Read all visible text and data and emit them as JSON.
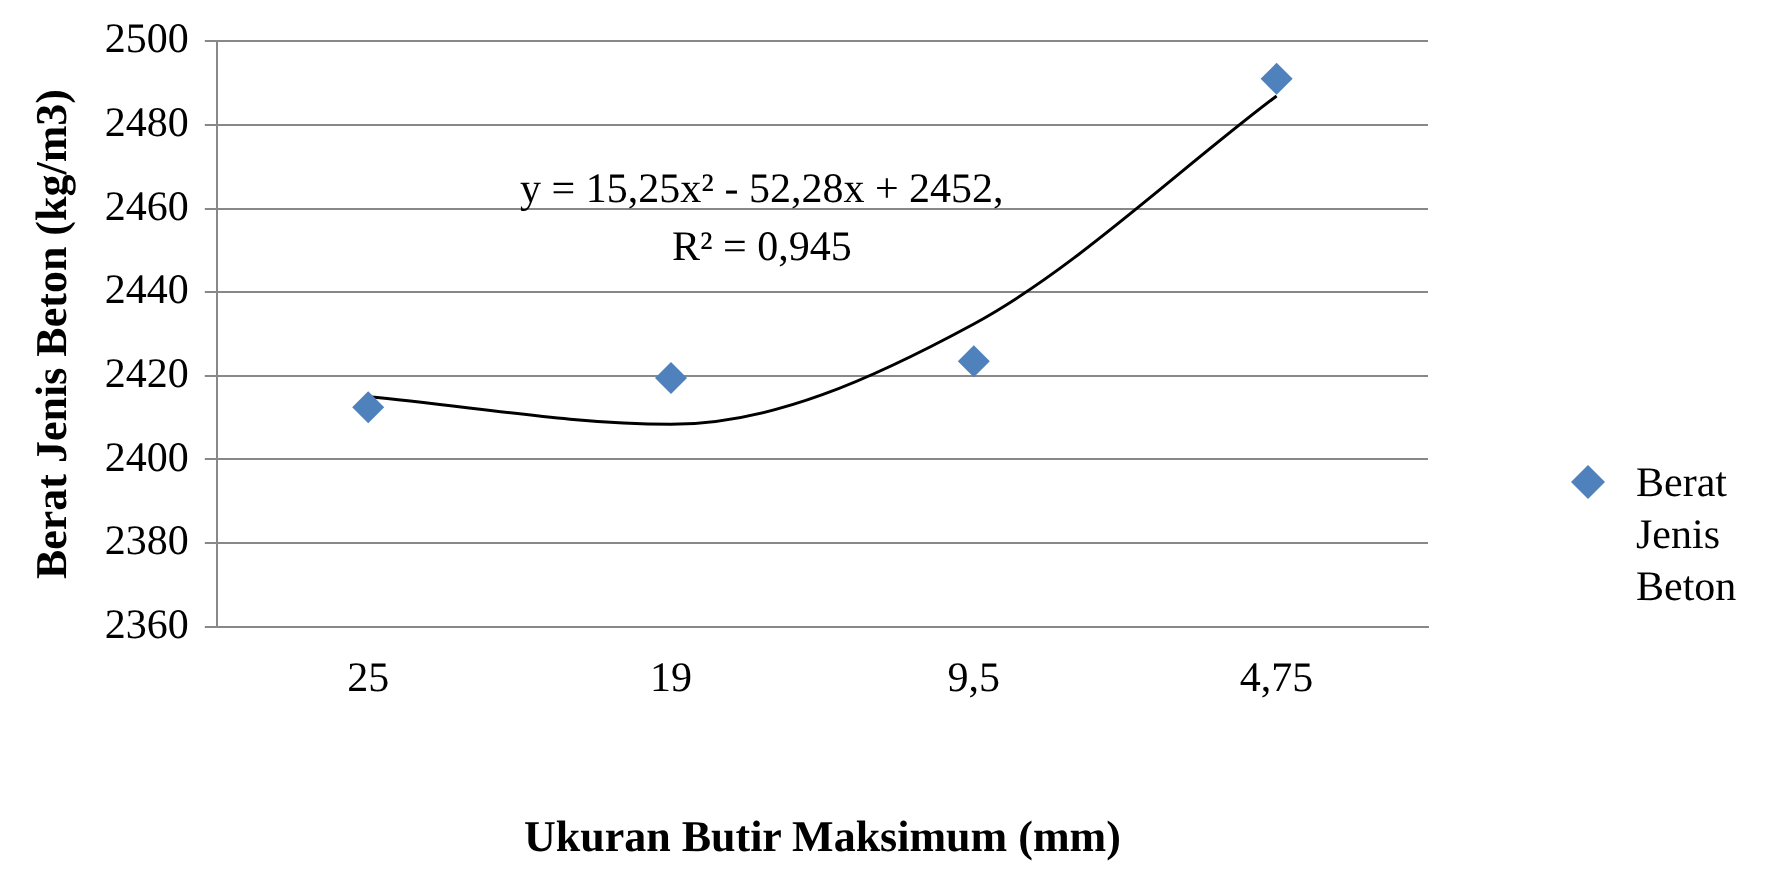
{
  "chart_data": {
    "type": "scatter",
    "xlabel": "Ukuran Butir Maksimum (mm)",
    "ylabel": "Berat Jenis Beton (kg/m3)",
    "categories": [
      "25",
      "19",
      "9,5",
      "4,75"
    ],
    "series": [
      {
        "name": "Berat Jenis Beton",
        "color": "#4f81bd",
        "marker": "diamond",
        "values": [
          2412.5,
          2419.5,
          2423.5,
          2491
        ]
      },
      {
        "type": "line",
        "color": "#000000",
        "marker": "none",
        "values": [
          2415.0,
          2408.4,
          2432.4,
          2486.9
        ]
      }
    ],
    "ylim": [
      2360,
      2500
    ],
    "yticks": [
      2360,
      2380,
      2400,
      2420,
      2440,
      2460,
      2480,
      2500
    ],
    "grid": "y",
    "legend": "right",
    "annotations": [
      "y = 15,25x² - 52,28x + 2452,",
      "R² = 0,945"
    ]
  }
}
